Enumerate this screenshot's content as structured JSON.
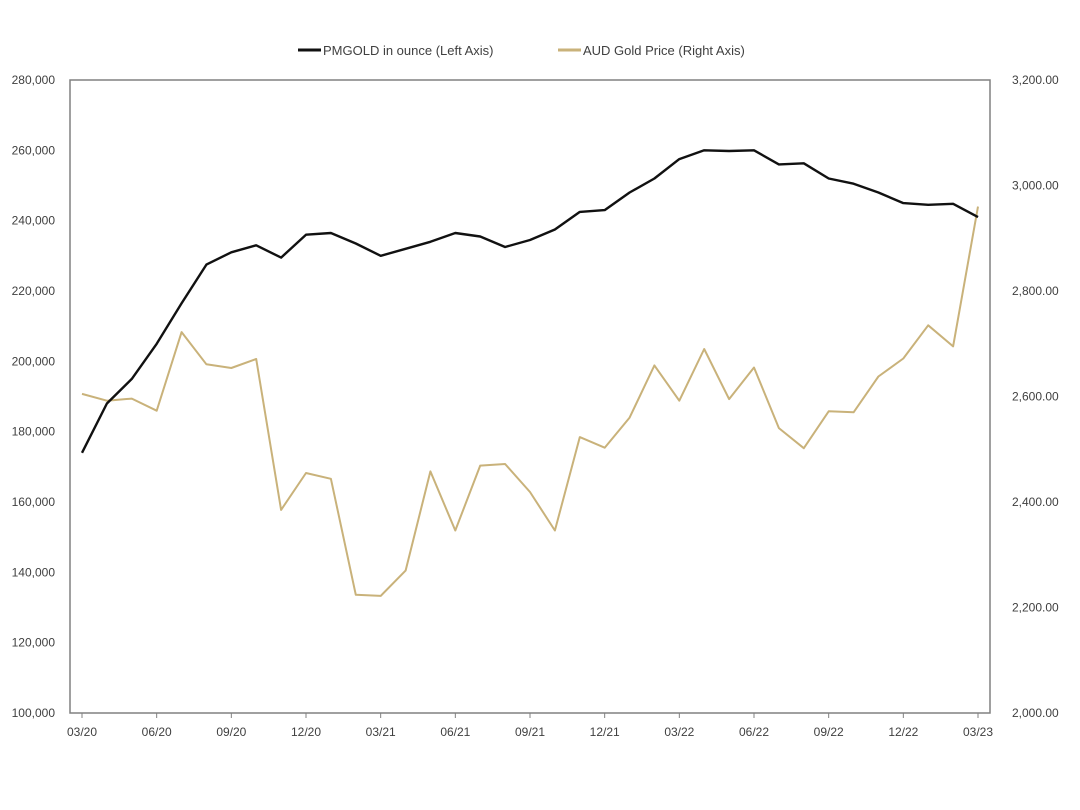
{
  "chart_data": {
    "type": "line",
    "title": "",
    "xlabel": "",
    "ylabel_left": "",
    "ylabel_right": "",
    "grid": false,
    "legend_position": "top-center",
    "y_left": {
      "min": 100000,
      "max": 280000,
      "step": 20000
    },
    "y_right": {
      "min": 2000,
      "max": 3200,
      "step": 200
    },
    "y_left_tick_labels": [
      "100,000",
      "120,000",
      "140,000",
      "160,000",
      "180,000",
      "200,000",
      "220,000",
      "240,000",
      "260,000",
      "280,000"
    ],
    "y_right_tick_labels": [
      "2,000.00",
      "2,200.00",
      "2,400.00",
      "2,600.00",
      "2,800.00",
      "3,000.00",
      "3,200.00"
    ],
    "x_tick_labels": [
      "03/20",
      "06/20",
      "09/20",
      "12/20",
      "03/21",
      "06/21",
      "09/21",
      "12/21",
      "03/22",
      "06/22",
      "09/22",
      "12/22",
      "03/23"
    ],
    "x": [
      "03/20",
      "04/20",
      "05/20",
      "06/20",
      "07/20",
      "08/20",
      "09/20",
      "10/20",
      "11/20",
      "12/20",
      "01/21",
      "02/21",
      "03/21",
      "04/21",
      "05/21",
      "06/21",
      "07/21",
      "08/21",
      "09/21",
      "10/21",
      "11/21",
      "12/21",
      "01/22",
      "02/22",
      "03/22",
      "04/22",
      "05/22",
      "06/22",
      "07/22",
      "08/22",
      "09/22",
      "10/22",
      "11/22",
      "12/22",
      "01/23",
      "02/23",
      "03/23"
    ],
    "series": [
      {
        "name": "PMGOLD in ounce (Left Axis)",
        "axis": "left",
        "color": "#111111",
        "values": [
          174000,
          188000,
          195000,
          205000,
          216500,
          227500,
          231000,
          233000,
          229500,
          236000,
          236500,
          233500,
          230000,
          232000,
          234000,
          236500,
          235500,
          232500,
          234500,
          237500,
          242500,
          243000,
          248000,
          252000,
          257500,
          260000,
          259800,
          260000,
          256000,
          256300,
          252000,
          250500,
          248000,
          245000,
          244500,
          244800,
          241000
        ]
      },
      {
        "name": "AUD Gold Price (Right Axis)",
        "axis": "right",
        "color": "#c9b27a",
        "values": [
          2605,
          2592,
          2596,
          2573,
          2722,
          2661,
          2654,
          2671,
          2385,
          2455,
          2444,
          2224,
          2222,
          2270,
          2458,
          2346,
          2469,
          2472,
          2419,
          2346,
          2523,
          2503,
          2560,
          2659,
          2592,
          2690,
          2595,
          2655,
          2540,
          2502,
          2572,
          2570,
          2638,
          2672,
          2735,
          2695,
          2960
        ]
      }
    ]
  }
}
